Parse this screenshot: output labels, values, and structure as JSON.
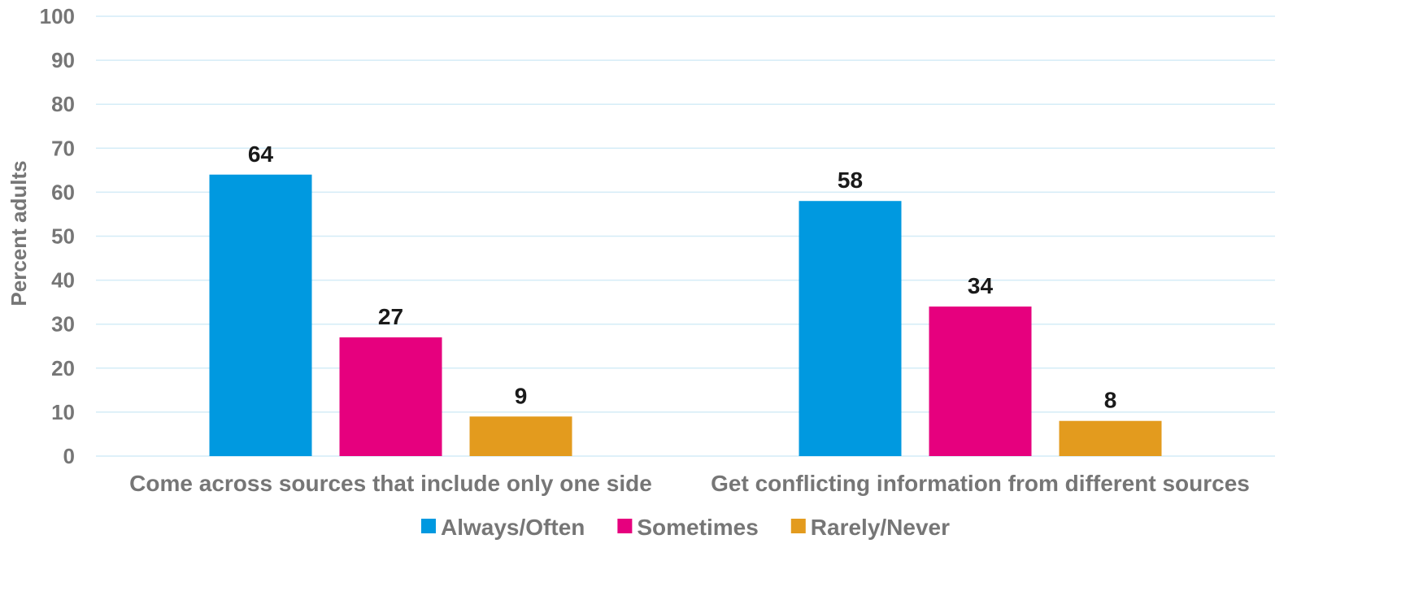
{
  "chart_data": {
    "type": "bar",
    "title": "",
    "xlabel": "",
    "ylabel": "Percent adults",
    "ylim": [
      0,
      100
    ],
    "yticks": [
      0,
      10,
      20,
      30,
      40,
      50,
      60,
      70,
      80,
      90,
      100
    ],
    "grid": true,
    "legend_position": "bottom",
    "categories": [
      "Come across sources that include only one side",
      "Get conflicting information from different sources"
    ],
    "series": [
      {
        "name": "Always/Often",
        "color": "#0099e0",
        "values": [
          64,
          58
        ]
      },
      {
        "name": "Sometimes",
        "color": "#e6007e",
        "values": [
          27,
          34
        ]
      },
      {
        "name": "Rarely/Never",
        "color": "#e39b1e",
        "values": [
          9,
          8
        ]
      }
    ]
  }
}
